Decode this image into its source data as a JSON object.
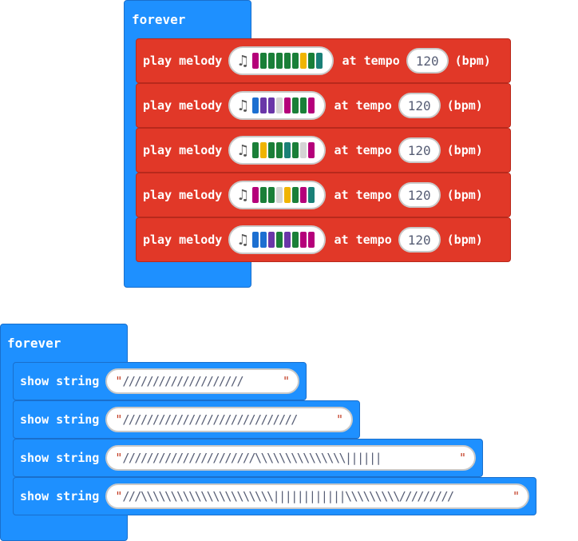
{
  "block1": {
    "label": "forever",
    "rows": [
      {
        "label": "play melody",
        "tempo_label": "at tempo",
        "tempo": "120",
        "unit": "(bpm)",
        "notes": [
          "#b5007a",
          "#1a7f38",
          "#1a7f38",
          "#1a7f38",
          "#1a7f38",
          "#1a7f38",
          "#f0b400",
          "#1a7f38",
          "#1a8077"
        ]
      },
      {
        "label": "play melody",
        "tempo_label": "at tempo",
        "tempo": "120",
        "unit": "(bpm)",
        "notes": [
          "#1c6fd1",
          "#6a36a8",
          "#6a36a8",
          "#d4d4d4",
          "#b5007a",
          "#1a7f38",
          "#1a7f38",
          "#b5007a"
        ]
      },
      {
        "label": "play melody",
        "tempo_label": "at tempo",
        "tempo": "120",
        "unit": "(bpm)",
        "notes": [
          "#1a7f38",
          "#f0b400",
          "#1a7f38",
          "#1a7f38",
          "#1a8077",
          "#1a7f38",
          "#d4d4d4",
          "#b5007a"
        ]
      },
      {
        "label": "play melody",
        "tempo_label": "at tempo",
        "tempo": "120",
        "unit": "(bpm)",
        "notes": [
          "#b5007a",
          "#1a7f38",
          "#1a7f38",
          "#d4d4d4",
          "#f0b400",
          "#1a7f38",
          "#b5007a",
          "#1a8077"
        ]
      },
      {
        "label": "play melody",
        "tempo_label": "at tempo",
        "tempo": "120",
        "unit": "(bpm)",
        "notes": [
          "#1c6fd1",
          "#1c6fd1",
          "#6a36a8",
          "#1a7f38",
          "#6a36a8",
          "#1a7f38",
          "#b5007a",
          "#b5007a"
        ]
      }
    ]
  },
  "block2": {
    "label": "forever",
    "rows": [
      {
        "label": "show string",
        "quote_open": "\"",
        "quote_close": "\"",
        "text": "////////////////////"
      },
      {
        "label": "show string",
        "quote_open": "\"",
        "quote_close": "\"",
        "text": "/////////////////////////////"
      },
      {
        "label": "show string",
        "quote_open": "\"",
        "quote_close": "\"",
        "text": "//////////////////////\\\\\\\\\\\\\\\\\\\\\\\\\\\\\\||||||"
      },
      {
        "label": "show string",
        "quote_open": "\"",
        "quote_close": "\"",
        "text": "///\\\\\\\\\\\\\\\\\\\\\\\\\\\\\\\\\\\\\\\\\\\\||||||||||||\\\\\\\\\\\\\\\\\\/////////"
      }
    ]
  },
  "colors": {
    "loop_blue": "#1e90ff",
    "music_red": "#e13828",
    "quote_red": "#c23b22"
  }
}
